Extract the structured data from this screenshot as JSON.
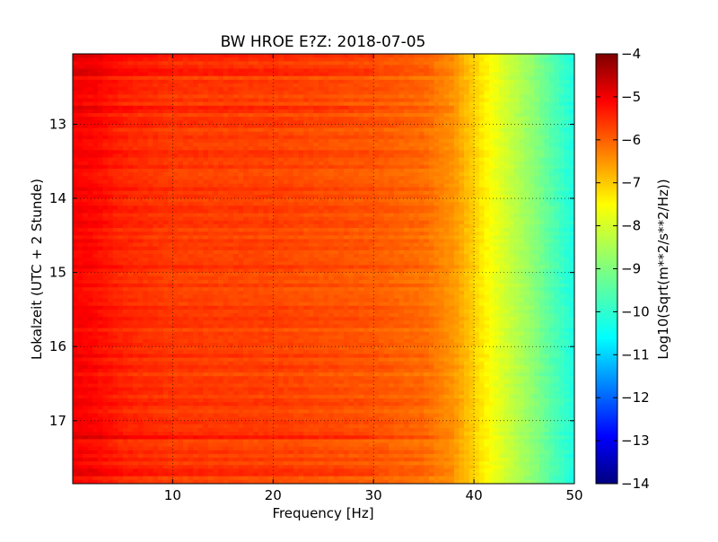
{
  "chart_data": {
    "type": "heatmap",
    "title": "BW HROE E?Z: 2018-07-05",
    "xlabel": "Frequency [Hz]",
    "ylabel": "Lokalzeit (UTC + 2 Stunde)",
    "colorbar_label": "Log10(Sqrt(m**2/s**2/Hz))",
    "xlim": [
      0.05,
      50
    ],
    "ylim": [
      17.85,
      12.05
    ],
    "y_inverted": true,
    "x_ticks": [
      10,
      20,
      30,
      40,
      50
    ],
    "y_ticks": [
      13,
      14,
      15,
      16,
      17
    ],
    "clim": [
      -14,
      -4
    ],
    "colorbar_ticks": [
      -4,
      -5,
      -6,
      -7,
      -8,
      -9,
      -10,
      -11,
      -12,
      -13,
      -14
    ],
    "colormap": "jet",
    "grid": true,
    "spectrum_profile": {
      "frequency_hz": [
        0,
        2,
        5,
        10,
        20,
        30,
        35,
        38,
        40,
        42,
        44,
        46,
        48,
        50
      ],
      "log10_amplitude": [
        -5.2,
        -5.3,
        -5.6,
        -5.8,
        -5.9,
        -6.1,
        -6.3,
        -6.7,
        -7.3,
        -7.9,
        -8.4,
        -8.9,
        -9.5,
        -10.0
      ]
    },
    "strong_bands_local_time": [
      12.1,
      12.3,
      12.8,
      17.2,
      17.7
    ]
  }
}
